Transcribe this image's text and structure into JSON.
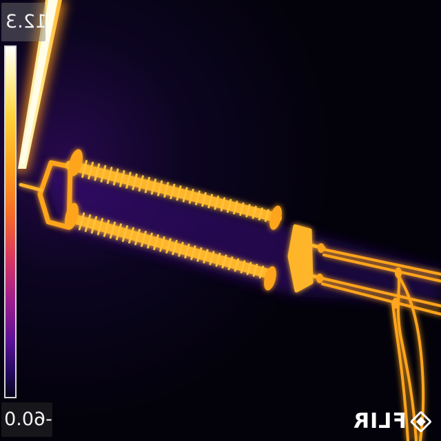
{
  "image": {
    "description": "",
    "palette": "iron",
    "colors": {
      "background": "#05030d",
      "hot": "#ffd23a",
      "warm": "#f56b28",
      "mid": "#a11f8c",
      "cool": "#240a5e"
    }
  },
  "overlay": {
    "temp_max": "12.3",
    "temp_min": "-60.0",
    "brand": "FLIR",
    "brand_icon": "flir-diamond-icon"
  }
}
